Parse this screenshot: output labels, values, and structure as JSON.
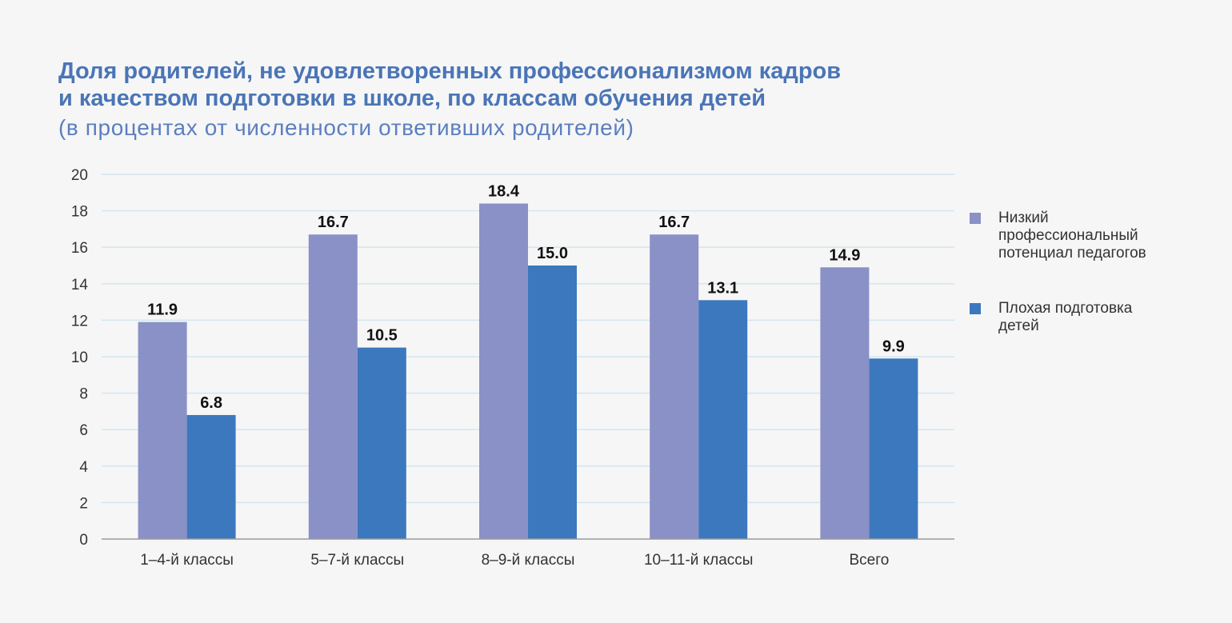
{
  "header": {
    "title_line1": "Доля родителей, не удовлетворенных профессионализмом кадров",
    "title_line2": "и качеством подготовки в школе, по классам обучения детей",
    "subtitle": "(в процентах от численности ответивших родителей)"
  },
  "legend": {
    "items": [
      {
        "label": "Низкий профессиональный потенциал педагогов"
      },
      {
        "label": "Плохая подготовка детей"
      }
    ]
  },
  "chart_data": {
    "type": "bar",
    "title": "Доля родителей, не удовлетворенных профессионализмом кадров и качеством подготовки в школе, по классам обучения детей",
    "subtitle": "(в процентах от численности ответивших родителей)",
    "categories": [
      "1–4-й классы",
      "5–7-й классы",
      "8–9-й классы",
      "10–11-й классы",
      "Всего"
    ],
    "series": [
      {
        "name": "Низкий профессиональный потенциал педагогов",
        "values": [
          11.9,
          16.7,
          18.4,
          16.7,
          14.9
        ],
        "labels": [
          "11.9",
          "16.7",
          "18.4",
          "16.7",
          "14.9"
        ],
        "color": "#8a91c6"
      },
      {
        "name": "Плохая подготовка детей",
        "values": [
          6.8,
          10.5,
          15.0,
          13.1,
          9.9
        ],
        "labels": [
          "6.8",
          "10.5",
          "15.0",
          "13.1",
          "9.9"
        ],
        "color": "#3c78bd"
      }
    ],
    "ylim": [
      0,
      20
    ],
    "yticks": [
      0,
      2,
      4,
      6,
      8,
      10,
      12,
      14,
      16,
      18,
      20
    ],
    "xlabel": "",
    "ylabel": "",
    "grid": true,
    "legend_position": "right",
    "colors": {
      "grid": "#d3e6ef",
      "axis": "#9a9a9a",
      "tick_label": "#333333",
      "value_label": "#111111"
    }
  }
}
